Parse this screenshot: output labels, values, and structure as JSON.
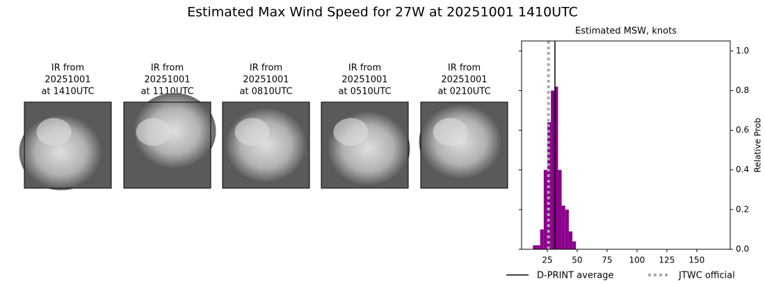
{
  "title": "Estimated Max Wind Speed for 27W at 20251001 1410UTC",
  "panels": [
    {
      "lines": [
        "IR from",
        "20251001",
        "at 1410UTC"
      ]
    },
    {
      "lines": [
        "IR from",
        "20251001",
        "at 1110UTC"
      ]
    },
    {
      "lines": [
        "IR from",
        "20251001",
        "at 0810UTC"
      ]
    },
    {
      "lines": [
        "IR from",
        "20251001",
        "at 0510UTC"
      ]
    },
    {
      "lines": [
        "IR from",
        "20251001",
        "at 0210UTC"
      ]
    }
  ],
  "chart_data": {
    "type": "histogram",
    "title": "Estimated MSW, knots",
    "y_label": "Relative Prob",
    "bins": [
      13,
      16,
      19,
      22,
      25,
      28,
      31,
      34,
      37,
      40,
      43,
      46,
      49
    ],
    "values": [
      0.02,
      0.02,
      0.1,
      0.4,
      0.64,
      0.8,
      0.82,
      0.4,
      0.22,
      0.2,
      0.09,
      0.04
    ],
    "color": "#8b008b",
    "xlim": [
      3.5,
      178
    ],
    "ylim": [
      0,
      1.05
    ],
    "xticks": [
      25,
      50,
      75,
      100,
      125,
      150
    ],
    "yticks": [
      {
        "value": 0,
        "label": "0.0"
      },
      {
        "value": 0.2,
        "label": "0.2"
      },
      {
        "value": 0.4,
        "label": "0.4"
      },
      {
        "value": 0.6,
        "label": "0.6"
      },
      {
        "value": 0.8,
        "label": "0.8"
      },
      {
        "value": 1.0,
        "label": "1.0"
      }
    ],
    "lines": [
      {
        "name": "D-PRINT average",
        "value": 31.4,
        "color": "#000000",
        "style": "solid"
      },
      {
        "name": "JTWC official",
        "value": 26,
        "color": "#aaaaaa",
        "style": "dotted"
      }
    ]
  }
}
